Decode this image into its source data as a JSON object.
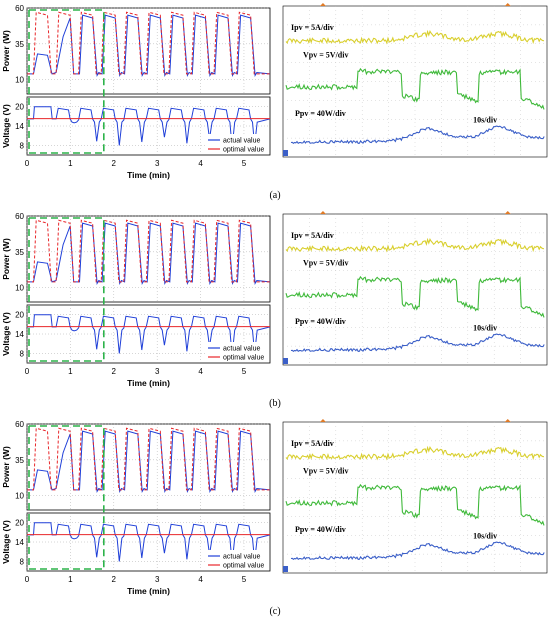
{
  "colors": {
    "actual": "#1f3fd8",
    "optimal_power": "#e8262a",
    "optimal_voltage": "#e8262a",
    "bracket": "#2db34a",
    "scope_ipv": "#d9cf2e",
    "scope_vpv": "#3fb93a",
    "scope_ppv": "#3b5fc8"
  },
  "chart_data": [
    {
      "panel": "(a)",
      "type": "line",
      "x": {
        "label": "Time (min)",
        "ticks": [
          0,
          1,
          2,
          3,
          4,
          5
        ],
        "lim": [
          0,
          5.6
        ]
      },
      "power": {
        "ylabel": "Power (W)",
        "ticks": [
          10,
          35,
          60
        ],
        "ylim": [
          0,
          60
        ],
        "series": [
          {
            "name": "actual value",
            "kind": "square_cycles",
            "low": 14,
            "high": 57,
            "period_min": 0.52
          }
        ]
      },
      "voltage": {
        "ylabel": "Voltage (V)",
        "ticks": [
          8,
          14,
          20
        ],
        "ylim": [
          5,
          23
        ],
        "series": [
          {
            "name": "actual value",
            "kind": "dips",
            "base": 16.2,
            "dip_min": 7
          },
          {
            "name": "optimal value",
            "kind": "flat",
            "value": 16.3
          }
        ]
      },
      "legend": [
        "actual value",
        "optimal value"
      ],
      "scope": {
        "ipv": "Ipv = 5A/div",
        "vpv": "Vpv = 5V/div",
        "ppv": "Ppv = 40W/div",
        "timebase": "10s/div"
      }
    },
    {
      "panel": "(b)",
      "type": "line",
      "x": {
        "label": "Time (min)",
        "ticks": [
          0,
          1,
          2,
          3,
          4,
          5
        ],
        "lim": [
          0,
          5.6
        ]
      },
      "power": {
        "ylabel": "Power (W)",
        "ticks": [
          10,
          35,
          60
        ],
        "ylim": [
          0,
          60
        ],
        "series": [
          {
            "name": "actual value",
            "kind": "square_cycles",
            "low": 14,
            "high": 57,
            "period_min": 0.52
          }
        ]
      },
      "voltage": {
        "ylabel": "Voltage (V)",
        "ticks": [
          8,
          14,
          20
        ],
        "ylim": [
          5,
          23
        ],
        "series": [
          {
            "name": "actual value",
            "kind": "dips",
            "base": 16.2,
            "dip_min": 7
          },
          {
            "name": "optimal value",
            "kind": "flat",
            "value": 16.3
          }
        ]
      },
      "legend": [
        "actual value",
        "optimal value"
      ],
      "scope": {
        "ipv": "Ipv = 5A/div",
        "vpv": "Vpv = 5V/div",
        "ppv": "Ppv = 40W/div",
        "timebase": "10s/div"
      }
    },
    {
      "panel": "(c)",
      "type": "line",
      "x": {
        "label": "Time (min)",
        "ticks": [
          0,
          1,
          2,
          3,
          4,
          5
        ],
        "lim": [
          0,
          5.6
        ]
      },
      "power": {
        "ylabel": "Power (W)",
        "ticks": [
          10,
          35,
          60
        ],
        "ylim": [
          0,
          60
        ],
        "series": [
          {
            "name": "actual value",
            "kind": "square_cycles",
            "low": 14,
            "high": 57,
            "period_min": 0.52
          }
        ]
      },
      "voltage": {
        "ylabel": "Voltage (V)",
        "ticks": [
          8,
          14,
          20
        ],
        "ylim": [
          5,
          23
        ],
        "series": [
          {
            "name": "actual value",
            "kind": "dips",
            "base": 16.2,
            "dip_min": 7
          },
          {
            "name": "optimal value",
            "kind": "flat",
            "value": 16.3
          }
        ]
      },
      "legend": [
        "actual value",
        "optimal value"
      ],
      "scope": {
        "ipv": "Ipv = 5A/div",
        "vpv": "Vpv = 5V/div",
        "ppv": "Ppv = 40W/div",
        "timebase": "10s/div"
      }
    }
  ]
}
